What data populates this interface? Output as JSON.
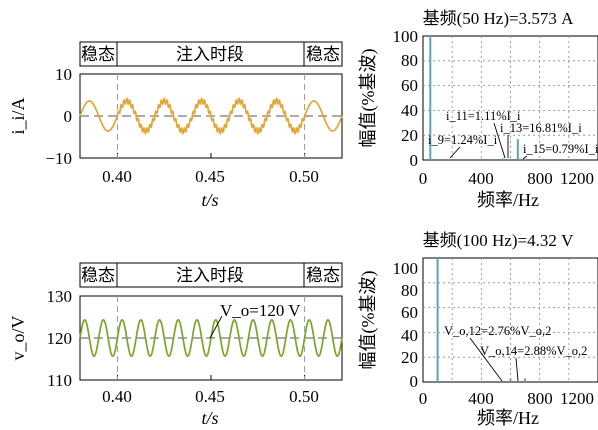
{
  "chart_data": [
    {
      "id": "current",
      "type": "line",
      "xlabel": "t/s",
      "ylabel": "i_i/A",
      "xlim": [
        0.38,
        0.52
      ],
      "ylim": [
        -10,
        10
      ],
      "xticks": [
        "0.40",
        "0.45",
        "0.50"
      ],
      "yticks": [
        "10",
        "0",
        "−10"
      ],
      "segments": [
        "稳态",
        "注入时段",
        "稳态"
      ],
      "segment_boundaries": [
        0.4,
        0.5
      ],
      "series": [
        {
          "amplitude": 3.573,
          "freq_hz": 50,
          "offset": 0,
          "injection_ripple_pct": 16.81,
          "color": "#e3a637"
        }
      ],
      "reference_line": 0
    },
    {
      "id": "current-spectrum",
      "type": "bar",
      "title": "基频(50 Hz)=3.573 A",
      "xlabel": "频率/Hz",
      "ylabel": "幅值(%基波)",
      "xlim": [
        0,
        1200
      ],
      "ylim": [
        0,
        100
      ],
      "xticks": [
        "0",
        "400",
        "800",
        "1200"
      ],
      "yticks": [
        "0",
        "20",
        "40",
        "60",
        "80",
        "100"
      ],
      "bars": [
        {
          "freq": 50,
          "value": 100
        },
        {
          "freq": 550,
          "value": 1.24
        },
        {
          "freq": 600,
          "value": 1.11
        },
        {
          "freq": 650,
          "value": 16.81
        },
        {
          "freq": 700,
          "value": 0.79
        }
      ],
      "annotations": [
        {
          "text": "i_9=1.24%I_i"
        },
        {
          "text": "i_11=1.11%I_i"
        },
        {
          "text": "i_13=16.81%I_i"
        },
        {
          "text": "i_15=0.79%I_i"
        }
      ],
      "grid": true,
      "color": "#5fa2b8"
    },
    {
      "id": "voltage",
      "type": "line",
      "xlabel": "t/s",
      "ylabel": "v_o/V",
      "xlim": [
        0.38,
        0.52
      ],
      "ylim": [
        110,
        130
      ],
      "xticks": [
        "0.40",
        "0.45",
        "0.50"
      ],
      "yticks": [
        "130",
        "120",
        "110"
      ],
      "segments": [
        "稳态",
        "注入时段",
        "稳态"
      ],
      "segment_boundaries": [
        0.4,
        0.5
      ],
      "series": [
        {
          "amplitude": 4.32,
          "freq_hz": 100,
          "offset": 120,
          "color": "#7ba428"
        }
      ],
      "reference_line": 120,
      "annotation": "V_o=120 V"
    },
    {
      "id": "voltage-spectrum",
      "type": "bar",
      "title": "基频(100 Hz)=4.32 V",
      "xlabel": "频率/Hz",
      "ylabel": "幅值(%基波)",
      "xlim": [
        0,
        1200
      ],
      "ylim": [
        0,
        100
      ],
      "xticks": [
        "0",
        "400",
        "800",
        "1200"
      ],
      "yticks": [
        "0",
        "20",
        "40",
        "60",
        "80",
        "100"
      ],
      "bars": [
        {
          "freq": 100,
          "value": 100
        },
        {
          "freq": 600,
          "value": 2.76
        },
        {
          "freq": 700,
          "value": 2.88
        }
      ],
      "annotations": [
        {
          "text": "V_o,12=2.76%V_o,2"
        },
        {
          "text": "V_o,14=2.88%V_o,2"
        }
      ],
      "grid": true,
      "color": "#5fa2b8"
    }
  ]
}
